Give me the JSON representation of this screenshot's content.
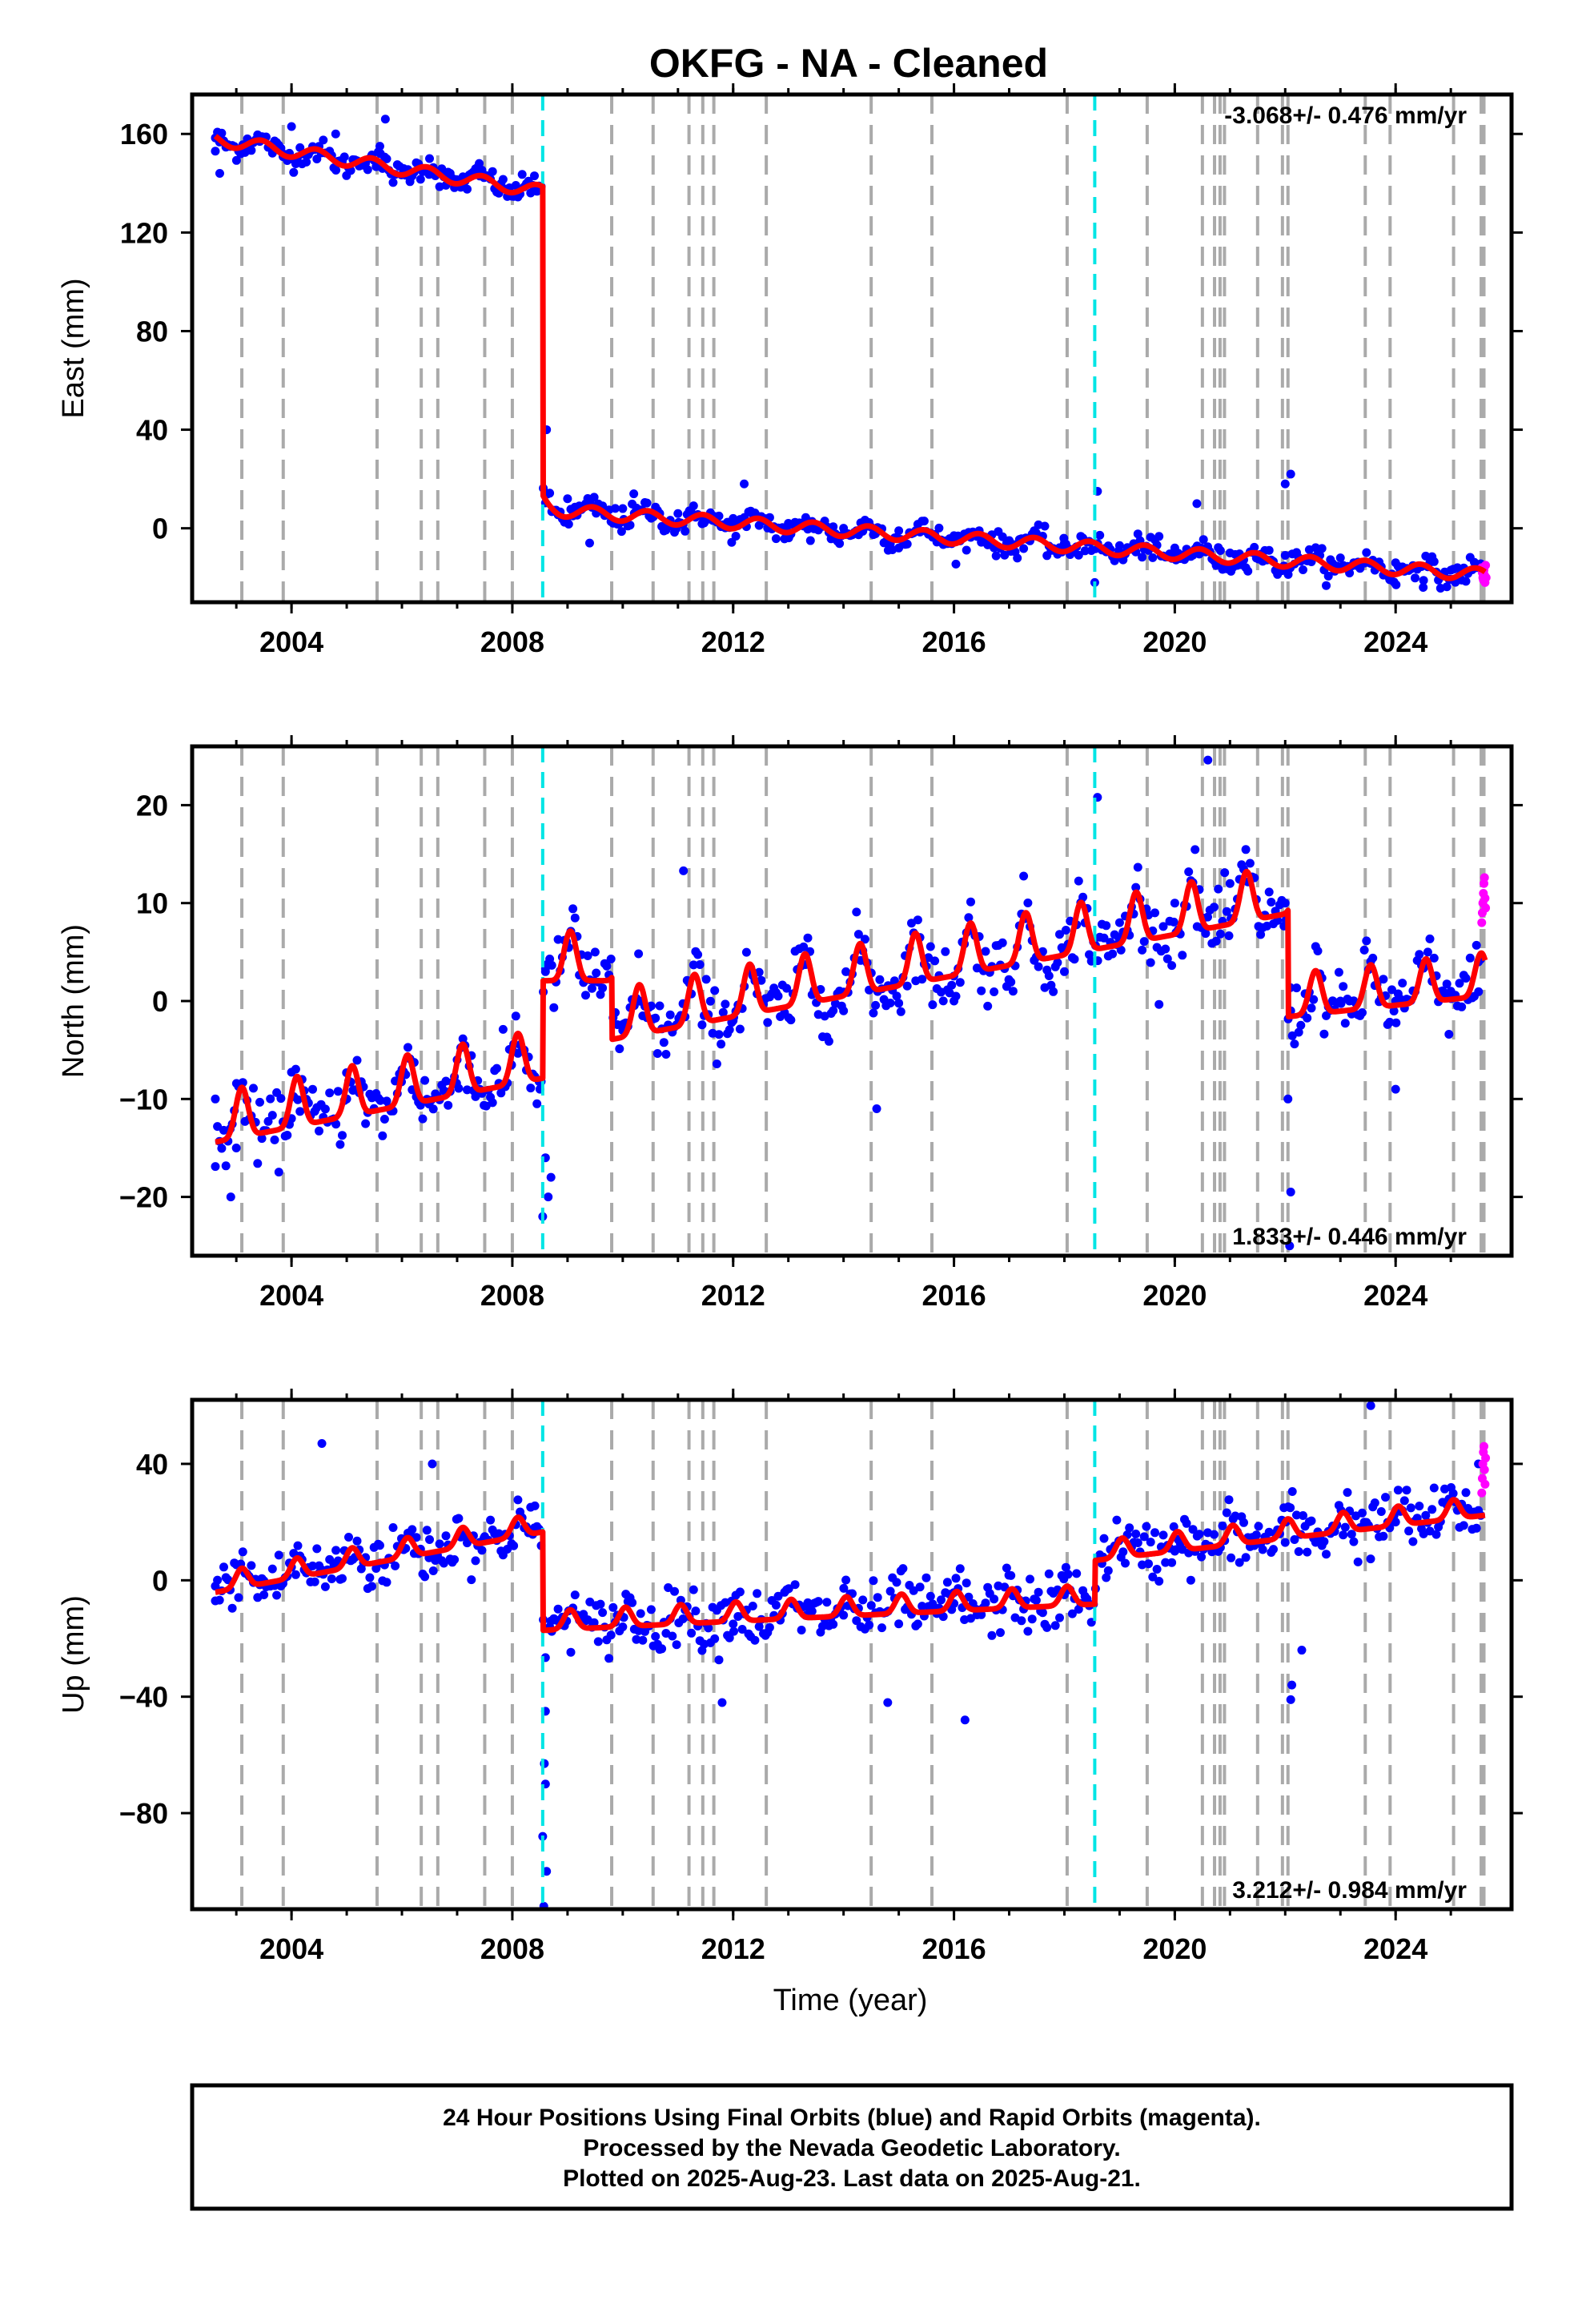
{
  "title": "OKFG  - NA - Cleaned",
  "xlabel": "Time (year)",
  "footer": [
    "24 Hour Positions Using Final Orbits (blue) and Rapid Orbits (magenta).",
    "Processed by the Nevada Geodetic Laboratory.",
    "Plotted on 2025-Aug-23. Last data on 2025-Aug-21."
  ],
  "colors": {
    "final": "#0000ff",
    "rapid": "#ff00ff",
    "model": "#ff0000",
    "equipment_change": "#aaaaaa",
    "earthquake": "#00e5e5"
  },
  "chart_data": [
    {
      "type": "scatter",
      "panel": "East",
      "ylabel": "East (mm)",
      "rate": "-3.068+/- 0.476 mm/yr",
      "xlim": [
        2002.2,
        2026.1
      ],
      "ylim": [
        -30,
        176
      ],
      "xticks": [
        "2004",
        "2008",
        "2012",
        "2016",
        "2020",
        "2024"
      ],
      "yticks": [
        "160",
        "120",
        "80",
        "40",
        "0"
      ],
      "grid": false,
      "equipment_changes": [
        2003.1,
        2003.85,
        2005.55,
        2006.35,
        2006.65,
        2007.5,
        2008.0,
        2009.8,
        2010.55,
        2011.2,
        2011.45,
        2011.65,
        2012.6,
        2014.5,
        2015.6,
        2018.05,
        2019.5,
        2020.5,
        2020.72,
        2020.82,
        2020.9,
        2021.5,
        2021.95,
        2022.05,
        2023.45,
        2023.9,
        2025.05,
        2025.55,
        2025.6
      ],
      "earthquakes": [
        2008.55,
        2018.55
      ],
      "model_trend": {
        "t0": 2002.6,
        "t_step": 2008.55,
        "pre_start": 158,
        "pre_rate": -3.6,
        "step": -129.0,
        "rate": -1.55,
        "seasonal_amp": 2.5,
        "post_decay": 4,
        "post_tau": 0.12
      },
      "noise_sd": 2.4,
      "sample_days": 14,
      "points": [
        [
          2002.62,
          153
        ],
        [
          2003.2,
          158
        ],
        [
          2004.0,
          163
        ],
        [
          2004.8,
          160
        ],
        [
          2005.6,
          155
        ],
        [
          2006.5,
          150
        ],
        [
          2007.4,
          148
        ],
        [
          2008.4,
          143
        ],
        [
          2008.62,
          40
        ],
        [
          2009.0,
          12
        ],
        [
          2010.0,
          8
        ],
        [
          2011.0,
          6
        ],
        [
          2012.0,
          4
        ],
        [
          2013.0,
          2
        ],
        [
          2014.0,
          0
        ],
        [
          2015.0,
          -1
        ],
        [
          2016.0,
          -3
        ],
        [
          2017.0,
          -5
        ],
        [
          2018.0,
          -6
        ],
        [
          2019.0,
          -7
        ],
        [
          2020.0,
          -8
        ],
        [
          2021.0,
          -10
        ],
        [
          2022.0,
          -11
        ],
        [
          2023.0,
          -12
        ],
        [
          2024.0,
          -14
        ],
        [
          2025.0,
          -17
        ],
        [
          2025.6,
          -19
        ]
      ],
      "outliers": [
        [
          2002.7,
          144
        ],
        [
          2005.7,
          166
        ],
        [
          2012.2,
          18
        ],
        [
          2018.6,
          15
        ],
        [
          2022.1,
          22
        ],
        [
          2022.0,
          18
        ],
        [
          2020.4,
          10
        ],
        [
          2009.4,
          -6
        ],
        [
          2013.4,
          -5
        ],
        [
          2018.55,
          -22
        ],
        [
          2024.5,
          -24
        ],
        [
          2010.2,
          14
        ]
      ],
      "rapid": [
        [
          2025.56,
          -16
        ],
        [
          2025.57,
          -18
        ],
        [
          2025.58,
          -20
        ],
        [
          2025.59,
          -21
        ],
        [
          2025.6,
          -17
        ],
        [
          2025.61,
          -19
        ],
        [
          2025.62,
          -22
        ],
        [
          2025.63,
          -15
        ],
        [
          2025.64,
          -20
        ]
      ]
    },
    {
      "type": "scatter",
      "panel": "North",
      "ylabel": "North (mm)",
      "rate": "1.833+/- 0.446 mm/yr",
      "xlim": [
        2002.2,
        2026.1
      ],
      "ylim": [
        -26,
        26
      ],
      "xticks": [
        "2004",
        "2008",
        "2012",
        "2016",
        "2020",
        "2024"
      ],
      "yticks": [
        "20",
        "10",
        "0",
        "−10",
        "−20"
      ],
      "grid": false,
      "equipment_changes": [
        2003.1,
        2003.85,
        2005.55,
        2006.35,
        2006.65,
        2007.5,
        2008.0,
        2009.8,
        2010.55,
        2011.2,
        2011.45,
        2011.65,
        2012.6,
        2014.5,
        2015.6,
        2018.05,
        2019.5,
        2020.5,
        2020.72,
        2020.82,
        2020.9,
        2021.5,
        2021.95,
        2022.05,
        2023.45,
        2023.9,
        2025.05,
        2025.55,
        2025.6
      ],
      "earthquakes": [
        2008.55,
        2018.55
      ],
      "model_segments": [
        {
          "from": 2002.6,
          "to": 2008.55,
          "start": -13.5,
          "rate": 1.1,
          "seasonal_amp": 2.3
        },
        {
          "from": 2008.55,
          "to": 2009.8,
          "start": 3.0,
          "rate": 0.0,
          "seasonal_amp": 2.3
        },
        {
          "from": 2009.8,
          "to": 2022.05,
          "start": -3.0,
          "rate": 1.05,
          "seasonal_amp": 2.3
        },
        {
          "from": 2022.05,
          "to": 2025.62,
          "start": -0.8,
          "rate": 0.6,
          "seasonal_amp": 2.0
        }
      ],
      "noise_sd": 1.7,
      "sample_days": 14,
      "points": [
        [
          2002.62,
          -10
        ],
        [
          2003.0,
          -15
        ],
        [
          2004.0,
          -12
        ],
        [
          2005.0,
          -10
        ],
        [
          2006.0,
          -7
        ],
        [
          2007.0,
          -6
        ],
        [
          2008.0,
          -5
        ],
        [
          2008.6,
          3
        ],
        [
          2009.5,
          5
        ],
        [
          2010.0,
          -3
        ],
        [
          2012.0,
          -2
        ],
        [
          2014.0,
          -1
        ],
        [
          2016.0,
          0
        ],
        [
          2018.0,
          3
        ],
        [
          2019.0,
          8
        ],
        [
          2020.0,
          10
        ],
        [
          2021.0,
          12
        ],
        [
          2022.0,
          10
        ],
        [
          2022.1,
          -1
        ],
        [
          2023.0,
          0
        ],
        [
          2024.0,
          0
        ],
        [
          2025.0,
          1
        ],
        [
          2025.5,
          4
        ]
      ],
      "outliers": [
        [
          2020.6,
          24.6
        ],
        [
          2018.6,
          20.8
        ],
        [
          2011.1,
          13.3
        ],
        [
          2008.6,
          -16
        ],
        [
          2008.65,
          -20
        ],
        [
          2008.55,
          -22
        ],
        [
          2008.5,
          -9
        ],
        [
          2022.05,
          -10
        ],
        [
          2022.1,
          -19.5
        ],
        [
          2022.08,
          -25
        ],
        [
          2002.9,
          -20
        ],
        [
          2014.6,
          -11
        ],
        [
          2024.0,
          -9
        ],
        [
          2008.7,
          -18
        ]
      ],
      "rapid": [
        [
          2025.56,
          8
        ],
        [
          2025.57,
          9
        ],
        [
          2025.58,
          10
        ],
        [
          2025.59,
          11
        ],
        [
          2025.6,
          12
        ],
        [
          2025.61,
          12.6
        ],
        [
          2025.62,
          10.5
        ],
        [
          2025.63,
          9.5
        ]
      ]
    },
    {
      "type": "scatter",
      "panel": "Up",
      "ylabel": "Up (mm)",
      "rate": "3.212+/- 0.984 mm/yr",
      "xlim": [
        2002.2,
        2026.1
      ],
      "ylim": [
        -113,
        62
      ],
      "xticks": [
        "2004",
        "2008",
        "2012",
        "2016",
        "2020",
        "2024"
      ],
      "yticks": [
        "40",
        "0",
        "−40",
        "−80"
      ],
      "grid": false,
      "equipment_changes": [
        2003.1,
        2003.85,
        2005.55,
        2006.35,
        2006.65,
        2007.5,
        2008.0,
        2009.8,
        2010.55,
        2011.2,
        2011.45,
        2011.65,
        2012.6,
        2014.5,
        2015.6,
        2018.05,
        2019.5,
        2020.5,
        2020.72,
        2020.82,
        2020.9,
        2021.5,
        2021.95,
        2022.05,
        2023.45,
        2023.9,
        2025.05,
        2025.55,
        2025.6
      ],
      "earthquakes": [
        2008.55,
        2018.55
      ],
      "model_segments": [
        {
          "from": 2002.6,
          "to": 2008.55,
          "start": -3.0,
          "rate": 3.5,
          "seasonal_amp": 3.0
        },
        {
          "from": 2008.55,
          "to": 2018.55,
          "start": -16.0,
          "rate": 0.9,
          "seasonal_amp": 3.0
        },
        {
          "from": 2018.55,
          "to": 2025.62,
          "start": 8.0,
          "rate": 2.2,
          "seasonal_amp": 3.0
        }
      ],
      "noise_sd": 5.0,
      "sample_days": 14,
      "points": [
        [
          2002.62,
          -2
        ],
        [
          2003.5,
          -5
        ],
        [
          2004.5,
          5
        ],
        [
          2005.6,
          12
        ],
        [
          2006.5,
          14
        ],
        [
          2007.5,
          15
        ],
        [
          2008.4,
          18
        ],
        [
          2008.7,
          -14
        ],
        [
          2010.0,
          -16
        ],
        [
          2012.0,
          -15
        ],
        [
          2014.0,
          -12
        ],
        [
          2016.0,
          -8
        ],
        [
          2018.0,
          -5
        ],
        [
          2018.7,
          8
        ],
        [
          2020.0,
          10
        ],
        [
          2022.0,
          13
        ],
        [
          2024.0,
          20
        ],
        [
          2025.5,
          24
        ]
      ],
      "outliers": [
        [
          2004.55,
          47
        ],
        [
          2006.55,
          40
        ],
        [
          2023.55,
          60
        ],
        [
          2025.5,
          40
        ],
        [
          2008.58,
          -63
        ],
        [
          2008.6,
          -70
        ],
        [
          2008.55,
          -88
        ],
        [
          2008.62,
          -100
        ],
        [
          2008.57,
          -112
        ],
        [
          2008.6,
          -45
        ],
        [
          2022.1,
          -41
        ],
        [
          2022.12,
          -36
        ],
        [
          2022.3,
          -24
        ],
        [
          2016.2,
          -48
        ],
        [
          2014.8,
          -42
        ],
        [
          2011.8,
          -42
        ]
      ],
      "rapid": [
        [
          2025.56,
          30
        ],
        [
          2025.57,
          35
        ],
        [
          2025.58,
          40
        ],
        [
          2025.59,
          44
        ],
        [
          2025.6,
          46
        ],
        [
          2025.61,
          38
        ],
        [
          2025.62,
          33
        ],
        [
          2025.63,
          42
        ]
      ]
    }
  ]
}
